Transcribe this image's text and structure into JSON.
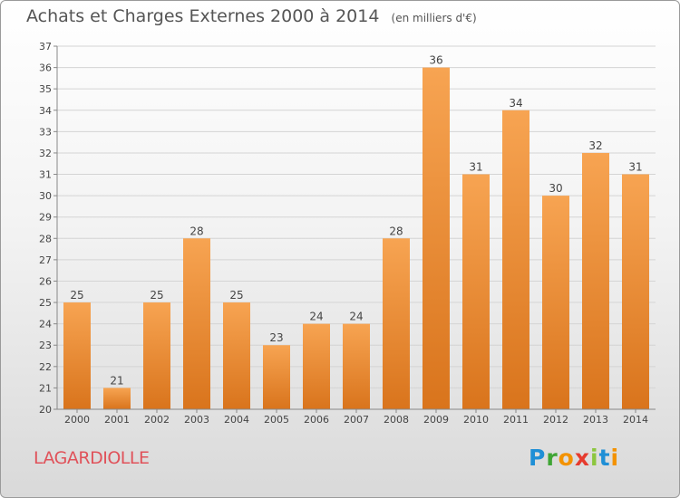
{
  "title": "Achats et Charges Externes 2000 à 2014",
  "unit_note": "(en milliers d'€)",
  "commune": "LAGARDIOLLE",
  "logo": {
    "letters": [
      "P",
      "r",
      "o",
      "x",
      "i",
      "t",
      "i"
    ],
    "colors": [
      "#1f8fd6",
      "#3fa535",
      "#f39200",
      "#e63b2e",
      "#8cc63f",
      "#1f8fd6",
      "#f39200"
    ]
  },
  "chart_data": {
    "type": "bar",
    "title": "Achats et Charges Externes 2000 à 2014",
    "xlabel": "",
    "ylabel": "",
    "categories": [
      "2000",
      "2001",
      "2002",
      "2003",
      "2004",
      "2005",
      "2006",
      "2007",
      "2008",
      "2009",
      "2010",
      "2011",
      "2012",
      "2013",
      "2014"
    ],
    "values": [
      25,
      21,
      25,
      28,
      25,
      23,
      24,
      24,
      28,
      36,
      31,
      34,
      30,
      32,
      31
    ],
    "ylim": [
      20,
      37
    ],
    "yticks": [
      20,
      21,
      22,
      23,
      24,
      25,
      26,
      27,
      28,
      29,
      30,
      31,
      32,
      33,
      34,
      35,
      36,
      37
    ],
    "grid": true,
    "bar_color_top": "#f7a452",
    "bar_color_bottom": "#d9741c"
  }
}
